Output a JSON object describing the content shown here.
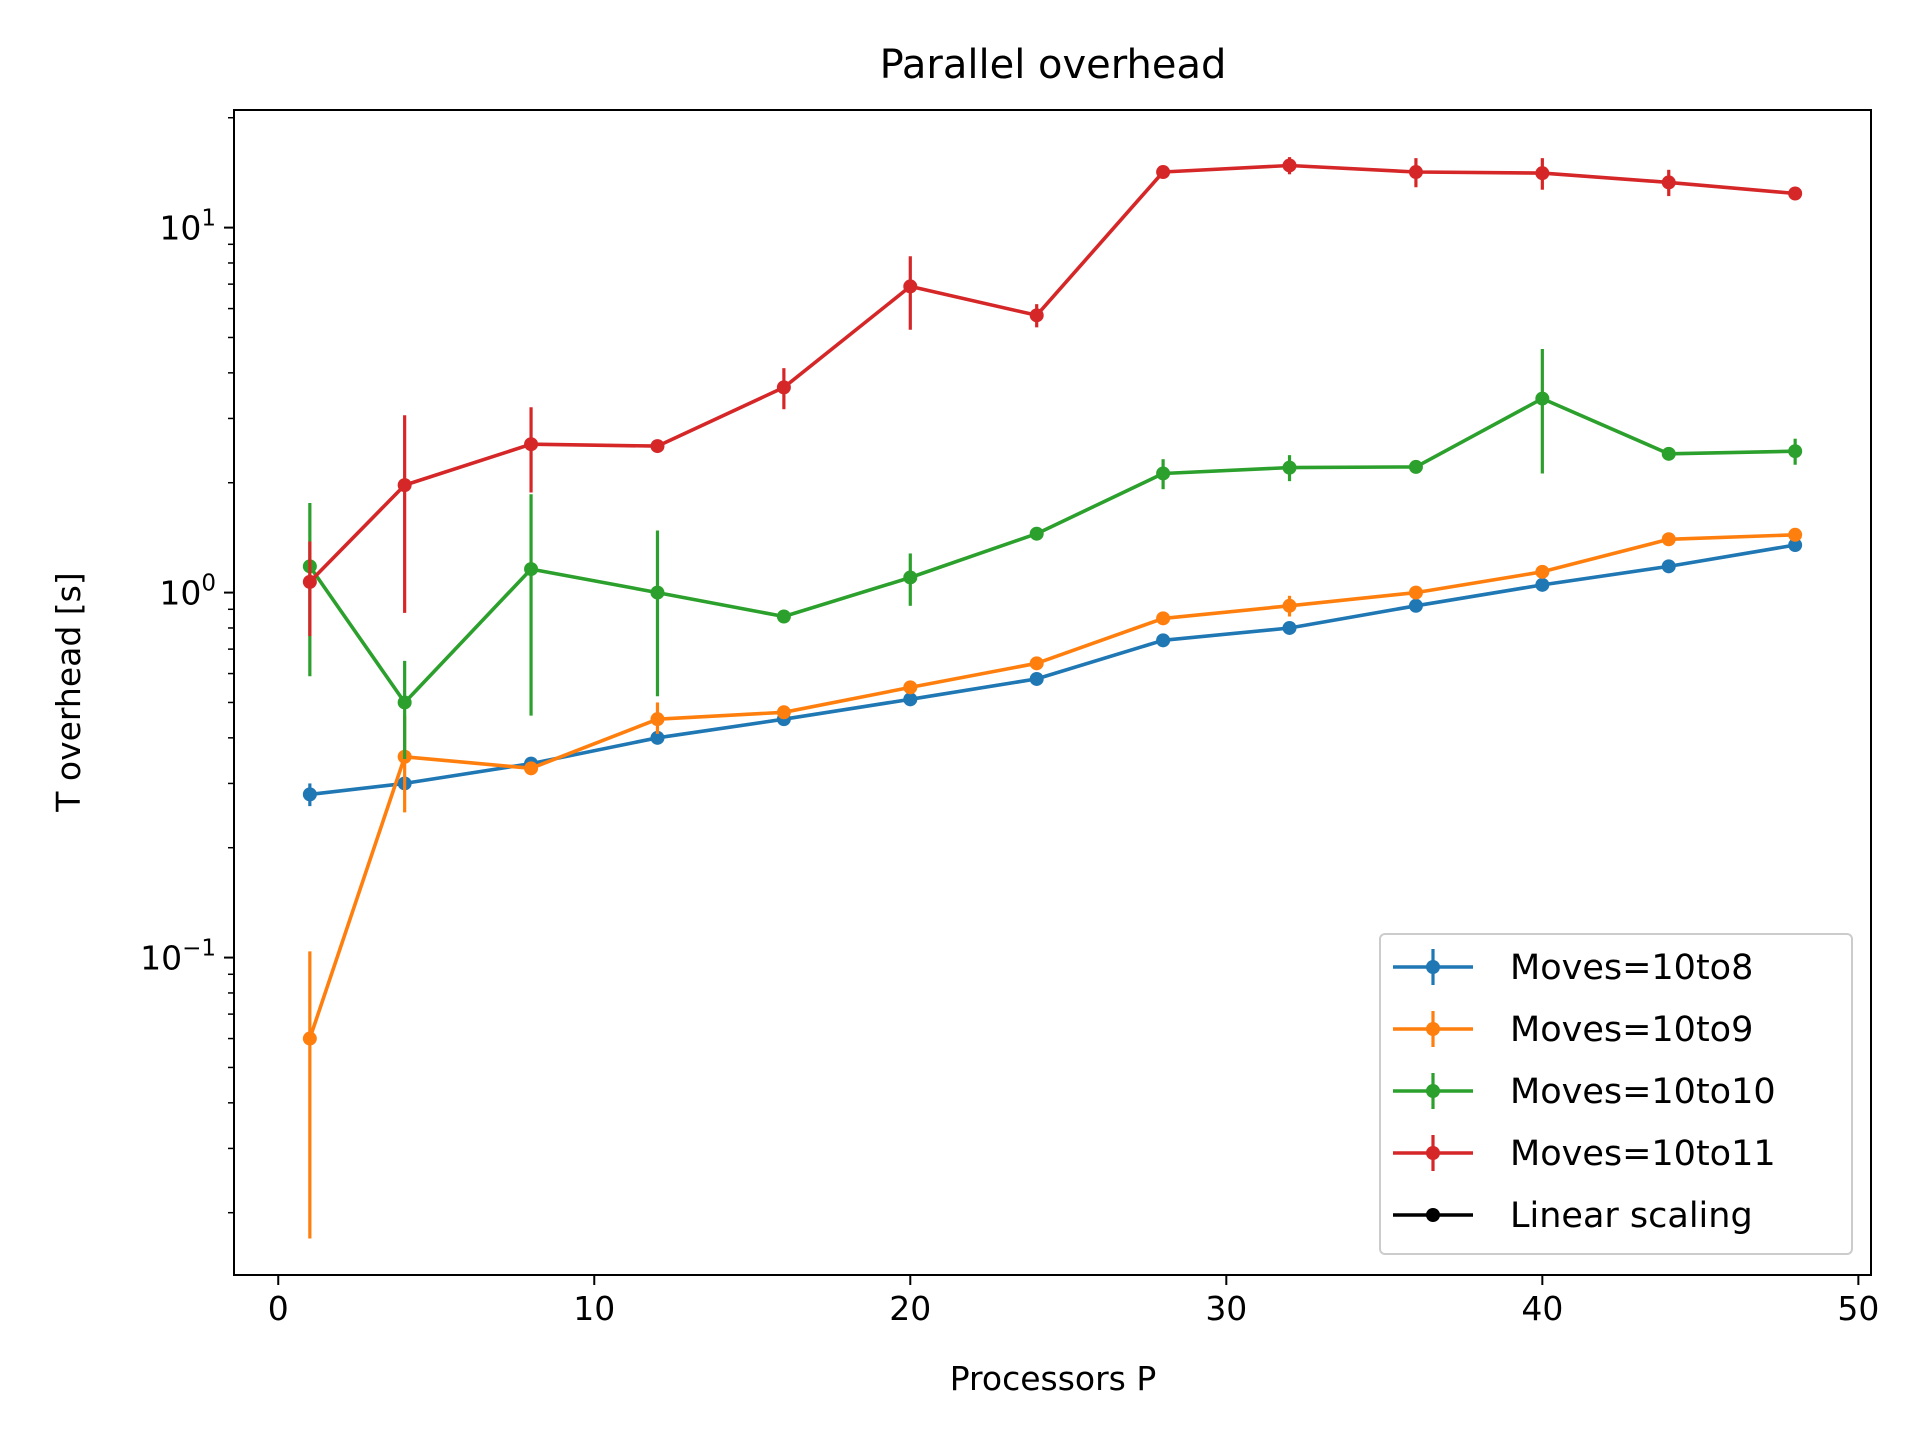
{
  "chart_data": {
    "type": "line",
    "title": "Parallel overhead",
    "xlabel": "Processors P",
    "ylabel": "T overhead [s]",
    "xlim": [
      -1.4,
      50.4
    ],
    "ylim": [
      0.0135,
      21
    ],
    "y_scale": "log",
    "x_ticks": [
      0,
      10,
      20,
      30,
      40,
      50
    ],
    "y_ticks": [
      {
        "value": 0.1,
        "base": "10",
        "exp": "−1"
      },
      {
        "value": 1,
        "base": "10",
        "exp": "0"
      },
      {
        "value": 10,
        "base": "10",
        "exp": "1"
      }
    ],
    "grid": false,
    "legend_position": "lower-right",
    "series": [
      {
        "name": "Moves=10to8",
        "color": "#1f77b4",
        "x": [
          1,
          4,
          8,
          12,
          16,
          20,
          24,
          28,
          32,
          36,
          40,
          44,
          48
        ],
        "y": [
          0.28,
          0.3,
          0.34,
          0.4,
          0.45,
          0.51,
          0.58,
          0.74,
          0.8,
          0.92,
          1.05,
          1.18,
          1.35
        ],
        "err_low": [
          0.26,
          null,
          null,
          null,
          null,
          null,
          null,
          null,
          null,
          null,
          null,
          null,
          null
        ],
        "err_high": [
          0.3,
          null,
          null,
          null,
          null,
          null,
          null,
          null,
          null,
          null,
          null,
          null,
          null
        ]
      },
      {
        "name": "Moves=10to9",
        "color": "#ff7f0e",
        "x": [
          1,
          4,
          8,
          12,
          16,
          20,
          24,
          28,
          32,
          36,
          40,
          44,
          48
        ],
        "y": [
          0.06,
          0.355,
          0.33,
          0.45,
          0.47,
          0.55,
          0.64,
          0.85,
          0.92,
          1.0,
          1.14,
          1.4,
          1.44
        ],
        "err_low": [
          0.017,
          0.25,
          null,
          0.41,
          null,
          null,
          null,
          null,
          0.86,
          null,
          null,
          null,
          null
        ],
        "err_high": [
          0.104,
          0.46,
          null,
          0.5,
          null,
          null,
          null,
          null,
          0.98,
          null,
          null,
          null,
          null
        ]
      },
      {
        "name": "Moves=10to10",
        "color": "#2ca02c",
        "x": [
          1,
          4,
          8,
          12,
          16,
          20,
          24,
          28,
          32,
          36,
          40,
          44,
          48
        ],
        "y": [
          1.18,
          0.5,
          1.16,
          1.0,
          0.86,
          1.1,
          1.45,
          2.12,
          2.2,
          2.21,
          3.4,
          2.4,
          2.44
        ],
        "err_low": [
          0.59,
          0.35,
          0.46,
          0.52,
          null,
          0.92,
          null,
          1.92,
          2.02,
          null,
          2.12,
          null,
          2.24
        ],
        "err_high": [
          1.76,
          0.65,
          1.86,
          1.48,
          null,
          1.28,
          null,
          2.32,
          2.38,
          null,
          4.65,
          null,
          2.64
        ]
      },
      {
        "name": "Moves=10to11",
        "color": "#d62728",
        "x": [
          1,
          4,
          8,
          12,
          16,
          20,
          24,
          28,
          32,
          36,
          40,
          44,
          48
        ],
        "y": [
          1.07,
          1.97,
          2.55,
          2.52,
          3.65,
          6.9,
          5.75,
          14.2,
          14.8,
          14.2,
          14.1,
          13.3,
          12.4
        ],
        "err_low": [
          0.76,
          0.88,
          1.88,
          null,
          3.18,
          5.25,
          5.33,
          null,
          14.0,
          12.9,
          12.7,
          12.2,
          null
        ],
        "err_high": [
          1.38,
          3.06,
          3.22,
          null,
          4.12,
          8.35,
          6.17,
          null,
          15.6,
          15.5,
          15.5,
          14.4,
          null
        ]
      }
    ],
    "legend": [
      {
        "name": "Moves=10to8",
        "color": "#1f77b4",
        "errorbar": true
      },
      {
        "name": "Moves=10to9",
        "color": "#ff7f0e",
        "errorbar": true
      },
      {
        "name": "Moves=10to10",
        "color": "#2ca02c",
        "errorbar": true
      },
      {
        "name": "Moves=10to11",
        "color": "#d62728",
        "errorbar": true
      },
      {
        "name": "Linear scaling",
        "color": "#000000",
        "errorbar": false
      }
    ]
  }
}
